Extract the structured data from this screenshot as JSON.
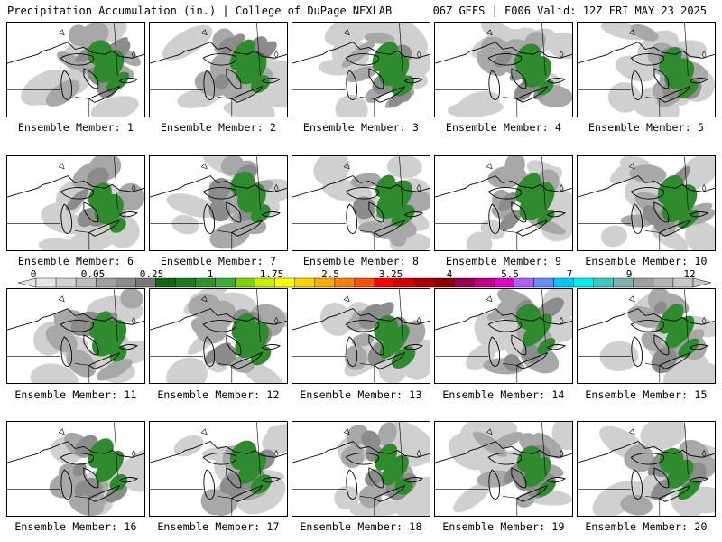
{
  "header": {
    "left": "Precipitation Accumulation (in.) | College of DuPage NEXLAB",
    "right": "06Z GEFS | F006 Valid: 12Z FRI MAY 23 2025"
  },
  "panel_label_prefix": "Ensemble Member: ",
  "members": [
    {
      "label": "Ensemble Member: 1",
      "number": 1
    },
    {
      "label": "Ensemble Member: 2",
      "number": 2
    },
    {
      "label": "Ensemble Member: 3",
      "number": 3
    },
    {
      "label": "Ensemble Member: 4",
      "number": 4
    },
    {
      "label": "Ensemble Member: 5",
      "number": 5
    },
    {
      "label": "Ensemble Member: 6",
      "number": 6
    },
    {
      "label": "Ensemble Member: 7",
      "number": 7
    },
    {
      "label": "Ensemble Member: 8",
      "number": 8
    },
    {
      "label": "Ensemble Member: 9",
      "number": 9
    },
    {
      "label": "Ensemble Member: 10",
      "number": 10
    },
    {
      "label": "Ensemble Member: 11",
      "number": 11
    },
    {
      "label": "Ensemble Member: 12",
      "number": 12
    },
    {
      "label": "Ensemble Member: 13",
      "number": 13
    },
    {
      "label": "Ensemble Member: 14",
      "number": 14
    },
    {
      "label": "Ensemble Member: 15",
      "number": 15
    },
    {
      "label": "Ensemble Member: 16",
      "number": 16
    },
    {
      "label": "Ensemble Member: 17",
      "number": 17
    },
    {
      "label": "Ensemble Member: 18",
      "number": 18
    },
    {
      "label": "Ensemble Member: 19",
      "number": 19
    },
    {
      "label": "Ensemble Member: 20",
      "number": 20
    }
  ],
  "colorbar": {
    "labels": [
      "0",
      "0.05",
      "0.25",
      "1",
      "1.75",
      "2.5",
      "3.25",
      "4",
      "5.5",
      "7",
      "9",
      "12"
    ],
    "colors": [
      "#e6e6e6",
      "#d2d2d2",
      "#bebebe",
      "#a0a0a0",
      "#8c8c8c",
      "#787878",
      "#116611",
      "#1e7d1e",
      "#2a962a",
      "#38ae38",
      "#7ad400",
      "#c8f000",
      "#ffff00",
      "#ffd200",
      "#ffaa00",
      "#ff8000",
      "#ff5000",
      "#ff0000",
      "#d40000",
      "#b00000",
      "#8c0000",
      "#960050",
      "#c00080",
      "#e000c8",
      "#b060ff",
      "#6a8cff",
      "#00c8ff",
      "#00f0f0",
      "#40c8c8",
      "#80b0b0",
      "#a0a0a0",
      "#b4b4b4",
      "#c8c8c8"
    ]
  },
  "colors": {
    "precip_green": "#2e8b2e",
    "precip_gray_dark": "#8c8c8c",
    "precip_gray_mid": "#a8a8a8",
    "precip_gray_light": "#d0d0d0"
  }
}
